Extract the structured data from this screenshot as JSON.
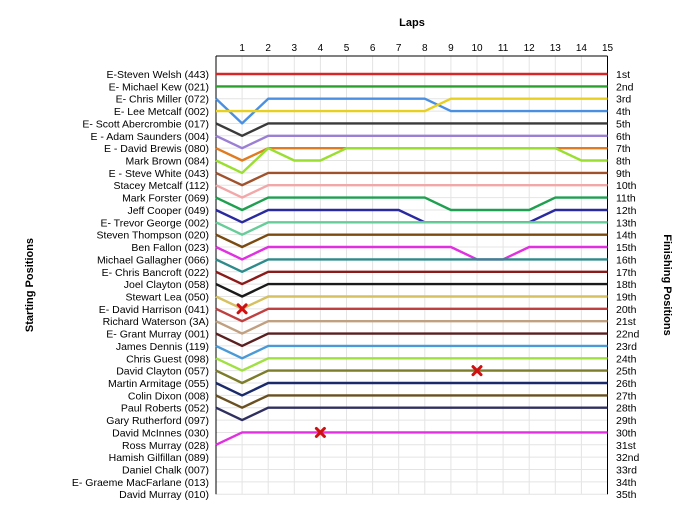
{
  "chart_data": {
    "type": "line",
    "title": "Laps",
    "ylabel_left": "Starting Positions",
    "ylabel_right": "Finishing Positions",
    "laps": [
      1,
      2,
      3,
      4,
      5,
      6,
      7,
      8,
      9,
      10,
      11,
      12,
      13,
      14,
      15
    ],
    "drivers": [
      "E-Steven Welsh (443)",
      "E- Michael Kew (021)",
      "E- Chris Miller (072)",
      "E- Lee Metcalf (002)",
      "E- Scott Abercrombie (017)",
      "E - Adam Saunders (004)",
      "E - David Brewis (080)",
      "Mark Brown (084)",
      "E - Steve White (043)",
      "Stacey Metcalf (112)",
      "Mark Forster (069)",
      "Jeff Cooper (049)",
      "E- Trevor George (002)",
      "Steven Thompson (020)",
      "Ben Fallon (023)",
      "Michael Gallagher (066)",
      "E- Chris Bancroft (022)",
      "Joel Clayton (058)",
      "Stewart Lea (050)",
      "E- David Harrison (041)",
      "Richard Waterson (3A)",
      "E- Grant Murray (001)",
      "James Dennis (119)",
      "Chris Guest (098)",
      "David Clayton (057)",
      "Martin Armitage (055)",
      "Colin Dixon (008)",
      "Paul Roberts (052)",
      "Gary Rutherford (097)",
      "David McInnes (030)",
      "Ross Murray (028)",
      "Hamish Gilfillan (089)",
      "Daniel Chalk (007)",
      "E- Graeme MacFarlane (013)",
      "David Murray (010)"
    ],
    "finishing_labels": [
      "1st",
      "2nd",
      "3rd",
      "4th",
      "5th",
      "6th",
      "7th",
      "8th",
      "9th",
      "10th",
      "11th",
      "12th",
      "13th",
      "14th",
      "15th",
      "16th",
      "17th",
      "18th",
      "19th",
      "20th",
      "21st",
      "22nd",
      "23rd",
      "24th",
      "25th",
      "26th",
      "27th",
      "28th",
      "29th",
      "30th",
      "31st",
      "32nd",
      "33rd",
      "34th",
      "35th"
    ],
    "grid": true,
    "series": [
      {
        "color": "#d62728",
        "start": 1,
        "positions": [
          1,
          1,
          1,
          1,
          1,
          1,
          1,
          1,
          1,
          1,
          1,
          1,
          1,
          1,
          1
        ]
      },
      {
        "color": "#2ca02c",
        "start": 2,
        "positions": [
          2,
          2,
          2,
          2,
          2,
          2,
          2,
          2,
          2,
          2,
          2,
          2,
          2,
          2,
          2
        ]
      },
      {
        "color": "#4a90e2",
        "start": 3,
        "positions": [
          5,
          3,
          3,
          3,
          3,
          3,
          3,
          3,
          4,
          4,
          4,
          4,
          4,
          4,
          4
        ]
      },
      {
        "color": "#e8d020",
        "start": 4,
        "positions": [
          4,
          4,
          4,
          4,
          4,
          4,
          4,
          4,
          3,
          3,
          3,
          3,
          3,
          3,
          3
        ]
      },
      {
        "color": "#3a3a3a",
        "start": 5,
        "positions": [
          6,
          5,
          5,
          5,
          5,
          5,
          5,
          5,
          5,
          5,
          5,
          5,
          5,
          5,
          5
        ]
      },
      {
        "color": "#9b7fd4",
        "start": 6,
        "positions": [
          7,
          6,
          6,
          6,
          6,
          6,
          6,
          6,
          6,
          6,
          6,
          6,
          6,
          6,
          6
        ]
      },
      {
        "color": "#e07b20",
        "start": 7,
        "positions": [
          8,
          7,
          7,
          7,
          7,
          7,
          7,
          7,
          7,
          7,
          7,
          7,
          7,
          7,
          7
        ]
      },
      {
        "color": "#9adf30",
        "start": 8,
        "positions": [
          9,
          7,
          8,
          8,
          7,
          7,
          7,
          7,
          7,
          7,
          7,
          7,
          7,
          8,
          8
        ]
      },
      {
        "color": "#a0522d",
        "start": 9,
        "positions": [
          10,
          9,
          9,
          9,
          9,
          9,
          9,
          9,
          9,
          9,
          9,
          9,
          9,
          9,
          9
        ]
      },
      {
        "color": "#f2a8a8",
        "start": 10,
        "positions": [
          11,
          10,
          10,
          10,
          10,
          10,
          10,
          10,
          10,
          10,
          10,
          10,
          10,
          10,
          10
        ]
      },
      {
        "color": "#1fa050",
        "start": 11,
        "positions": [
          12,
          11,
          11,
          11,
          11,
          11,
          11,
          11,
          12,
          12,
          12,
          12,
          11,
          11,
          11
        ]
      },
      {
        "color": "#2a2aa0",
        "start": 12,
        "positions": [
          13,
          12,
          12,
          12,
          12,
          12,
          12,
          13,
          13,
          13,
          13,
          13,
          12,
          12,
          12
        ]
      },
      {
        "color": "#66cc99",
        "start": 13,
        "positions": [
          14,
          13,
          13,
          13,
          13,
          13,
          13,
          13,
          13,
          13,
          13,
          13,
          13,
          13,
          13
        ]
      },
      {
        "color": "#7a4a10",
        "start": 14,
        "positions": [
          15,
          14,
          14,
          14,
          14,
          14,
          14,
          14,
          14,
          14,
          14,
          14,
          14,
          14,
          14
        ]
      },
      {
        "color": "#e030e0",
        "start": 15,
        "positions": [
          16,
          15,
          15,
          15,
          15,
          15,
          15,
          15,
          15,
          16,
          16,
          15,
          15,
          15,
          15
        ]
      },
      {
        "color": "#2e8b8b",
        "start": 16,
        "positions": [
          17,
          16,
          16,
          16,
          16,
          16,
          16,
          16,
          16,
          16,
          16,
          16,
          16,
          16,
          16
        ]
      },
      {
        "color": "#8b1a1a",
        "start": 17,
        "positions": [
          18,
          17,
          17,
          17,
          17,
          17,
          17,
          17,
          17,
          17,
          17,
          17,
          17,
          17,
          17
        ]
      },
      {
        "color": "#1a1a1a",
        "start": 18,
        "positions": [
          19,
          18,
          18,
          18,
          18,
          18,
          18,
          18,
          18,
          18,
          18,
          18,
          18,
          18,
          18
        ]
      },
      {
        "color": "#d6c060",
        "start": 19,
        "positions": [
          20,
          19,
          19,
          19,
          19,
          19,
          19,
          19,
          19,
          19,
          19,
          19,
          19,
          19,
          19
        ]
      },
      {
        "color": "#c04040",
        "start": 20,
        "positions": [
          21,
          20,
          20,
          20,
          20,
          20,
          20,
          20,
          20,
          20,
          20,
          20,
          20,
          20,
          20
        ]
      },
      {
        "color": "#c0a080",
        "start": 21,
        "positions": [
          22,
          21,
          21,
          21,
          21,
          21,
          21,
          21,
          21,
          21,
          21,
          21,
          21,
          21,
          21
        ]
      },
      {
        "color": "#5a2020",
        "start": 22,
        "positions": [
          23,
          22,
          22,
          22,
          22,
          22,
          22,
          22,
          22,
          22,
          22,
          22,
          22,
          22,
          22
        ]
      },
      {
        "color": "#4a9ad8",
        "start": 23,
        "positions": [
          24,
          23,
          23,
          23,
          23,
          23,
          23,
          23,
          23,
          23,
          23,
          23,
          23,
          23,
          23
        ]
      },
      {
        "color": "#a0e040",
        "start": 24,
        "positions": [
          25,
          24,
          24,
          24,
          24,
          24,
          24,
          24,
          24,
          24,
          24,
          24,
          24,
          24,
          24
        ]
      },
      {
        "color": "#7c7c2a",
        "start": 25,
        "positions": [
          26,
          25,
          25,
          25,
          25,
          25,
          25,
          25,
          25,
          25,
          25,
          25,
          25,
          25,
          25
        ]
      },
      {
        "color": "#1a2a6a",
        "start": 26,
        "positions": [
          27,
          26,
          26,
          26,
          26,
          26,
          26,
          26,
          26,
          26,
          26,
          26,
          26,
          26,
          26
        ]
      },
      {
        "color": "#6a5020",
        "start": 27,
        "positions": [
          28,
          27,
          27,
          27,
          27,
          27,
          27,
          27,
          27,
          27,
          27,
          27,
          27,
          27,
          27
        ]
      },
      {
        "color": "#303060",
        "start": 28,
        "positions": [
          29,
          28,
          28,
          28,
          28,
          28,
          28,
          28,
          28,
          28,
          28,
          28,
          28,
          28,
          28
        ]
      },
      {
        "color": "#e030e0",
        "start": 31,
        "positions": [
          30,
          30,
          30,
          30,
          30,
          30,
          30,
          30,
          30,
          30,
          30,
          30,
          30,
          30,
          30
        ]
      }
    ],
    "retirements": [
      {
        "lap": 1,
        "position": 20
      },
      {
        "lap": 10,
        "position": 25
      },
      {
        "lap": 4,
        "position": 30
      }
    ]
  }
}
